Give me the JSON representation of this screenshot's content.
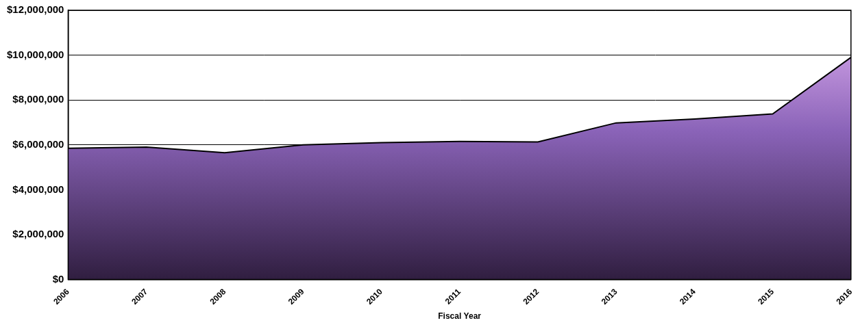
{
  "chart_data": {
    "type": "area",
    "x_label": "Fiscal Year",
    "categories": [
      "2006",
      "2007",
      "2008",
      "2009",
      "2010",
      "2011",
      "2012",
      "2013",
      "2014",
      "2015",
      "2016"
    ],
    "values": [
      5850000,
      5900000,
      5650000,
      6000000,
      6100000,
      6150000,
      6130000,
      6980000,
      7150000,
      7380000,
      9900000
    ],
    "color": "#8a63b8",
    "ylim": [
      0,
      12000000
    ],
    "yticks": [
      {
        "value": 0,
        "label": "$0"
      },
      {
        "value": 2000000,
        "label": "$2,000,000"
      },
      {
        "value": 4000000,
        "label": "$4,000,000"
      },
      {
        "value": 6000000,
        "label": "$6,000,000"
      },
      {
        "value": 8000000,
        "label": "$8,000,000"
      },
      {
        "value": 10000000,
        "label": "$10,000,000"
      },
      {
        "value": 12000000,
        "label": "$12,000,000"
      }
    ],
    "grid": true
  }
}
